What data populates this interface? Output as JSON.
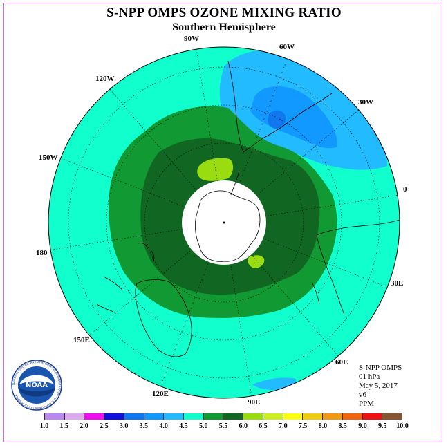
{
  "title": "S-NPP OMPS OZONE MIXING RATIO",
  "subtitle": "Southern Hemisphere",
  "longitude_labels": {
    "w90": "90W",
    "w60": "60W",
    "w30": "30W",
    "lon0": "0",
    "w120": "120W",
    "w150": "150W",
    "lon180": "180",
    "e30": "30E",
    "e60": "60E",
    "e90": "90E",
    "e120": "120E",
    "e150": "150E"
  },
  "info": {
    "instrument": "S-NPP OMPS",
    "level": "01 hPa",
    "date": "May 5, 2017",
    "version": "v6",
    "units": "PPM"
  },
  "logo": {
    "text": "NOAA",
    "ring_text": "NATIONAL OCEANIC AND ATMOSPHERIC ADMINISTRATION · U.S. DEPARTMENT OF COMMERCE"
  },
  "colorbar": {
    "ticks": [
      "1.0",
      "1.5",
      "2.0",
      "2.5",
      "3.0",
      "3.5",
      "4.0",
      "4.5",
      "5.0",
      "5.5",
      "6.0",
      "6.5",
      "7.0",
      "7.5",
      "8.0",
      "8.5",
      "9.0",
      "9.5",
      "10.0"
    ],
    "colors": [
      "#bb88ee",
      "#ddaaee",
      "#ee11ee",
      "#1111dd",
      "#1177ee",
      "#1199ff",
      "#22bbff",
      "#11ffcc",
      "#119933",
      "#116622",
      "#99dd11",
      "#ccee22",
      "#ffff11",
      "#eecc11",
      "#ee9911",
      "#ee6611",
      "#ee1111",
      "#885533"
    ]
  },
  "map_colors": {
    "ocean_fill": "#11ffcc",
    "band_outer": "#119933",
    "band_inner": "#116622",
    "high_patch": "#99dd11",
    "low_light": "#22bbff",
    "low_mid": "#1199ff",
    "low_core": "#1177ee",
    "pole_hole": "#ffffff"
  }
}
